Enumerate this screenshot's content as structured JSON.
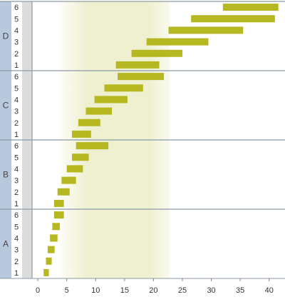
{
  "chart_data": {
    "type": "bar",
    "orientation": "horizontal-range",
    "x_ticks": [
      0,
      5,
      10,
      15,
      20,
      25,
      30,
      35,
      40
    ],
    "xlim": [
      -1,
      42.5
    ],
    "highlight_band": [
      3.8,
      22.8
    ],
    "groups": [
      {
        "label": "D",
        "bars": [
          {
            "row": "1",
            "start": 13.5,
            "end": 21.0
          },
          {
            "row": "2",
            "start": 16.2,
            "end": 25.0
          },
          {
            "row": "3",
            "start": 18.8,
            "end": 29.5
          },
          {
            "row": "4",
            "start": 22.6,
            "end": 35.5
          },
          {
            "row": "5",
            "start": 26.5,
            "end": 41.0
          },
          {
            "row": "6",
            "start": 32.0,
            "end": 41.6
          }
        ]
      },
      {
        "label": "C",
        "bars": [
          {
            "row": "1",
            "start": 5.9,
            "end": 9.2
          },
          {
            "row": "2",
            "start": 7.0,
            "end": 10.8
          },
          {
            "row": "3",
            "start": 8.3,
            "end": 12.8
          },
          {
            "row": "4",
            "start": 9.8,
            "end": 15.5
          },
          {
            "row": "5",
            "start": 11.5,
            "end": 18.2
          },
          {
            "row": "6",
            "start": 13.8,
            "end": 21.8
          }
        ]
      },
      {
        "label": "B",
        "bars": [
          {
            "row": "1",
            "start": 2.8,
            "end": 4.5
          },
          {
            "row": "2",
            "start": 3.4,
            "end": 5.5
          },
          {
            "row": "3",
            "start": 4.1,
            "end": 6.6
          },
          {
            "row": "4",
            "start": 5.0,
            "end": 7.8
          },
          {
            "row": "5",
            "start": 5.9,
            "end": 8.8
          },
          {
            "row": "6",
            "start": 6.6,
            "end": 12.2
          }
        ]
      },
      {
        "label": "A",
        "bars": [
          {
            "row": "1",
            "start": 1.0,
            "end": 1.9
          },
          {
            "row": "2",
            "start": 1.4,
            "end": 2.4
          },
          {
            "row": "3",
            "start": 1.7,
            "end": 2.9
          },
          {
            "row": "4",
            "start": 2.1,
            "end": 3.4
          },
          {
            "row": "5",
            "start": 2.5,
            "end": 3.8
          },
          {
            "row": "6",
            "start": 2.8,
            "end": 4.5
          }
        ]
      }
    ],
    "colors": {
      "bar": "#b5b820",
      "band": "#eef0cf",
      "group_strip": "#b9c9dd",
      "row_strip": "#dcdcdc",
      "divider": "#8c99a8",
      "axis": "#888888"
    },
    "grid": false,
    "legend": "none"
  }
}
